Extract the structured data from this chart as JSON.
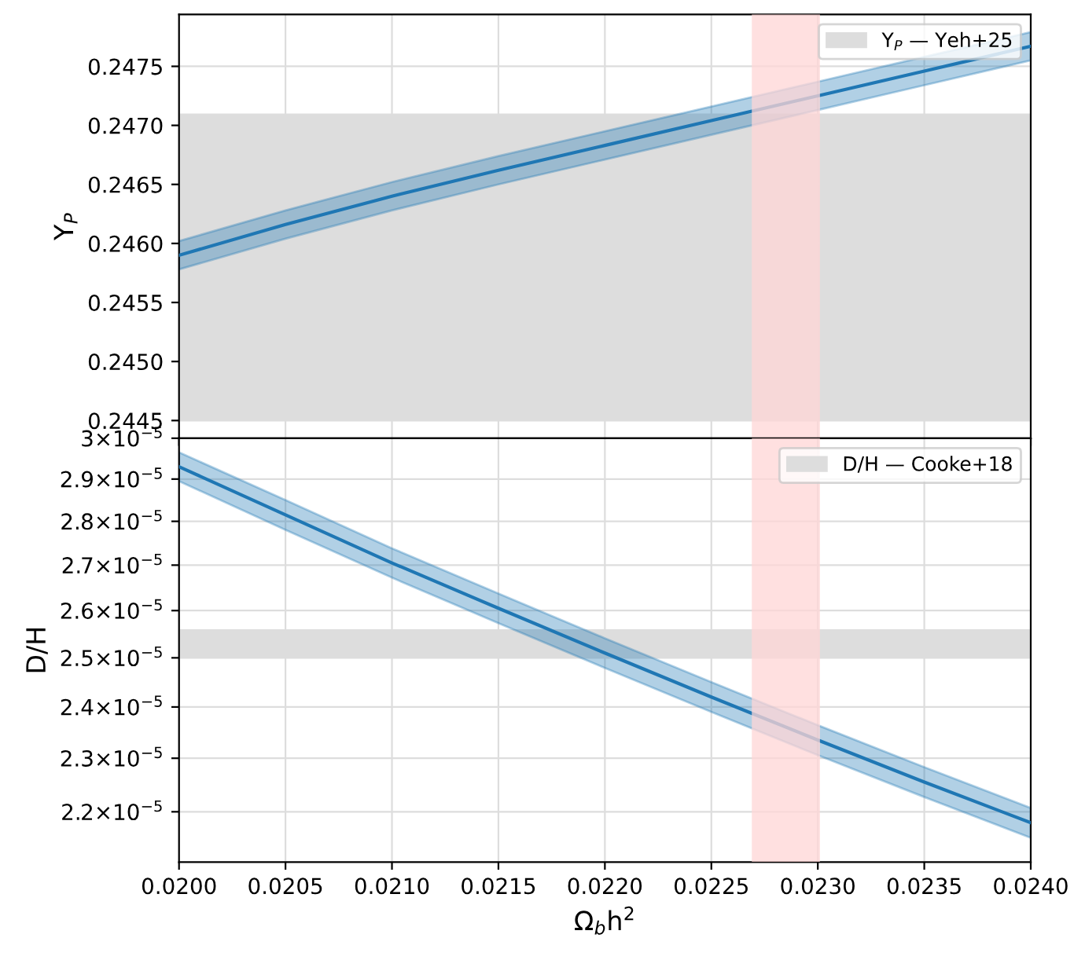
{
  "chart_data": [
    {
      "type": "line",
      "ylabel": "Y$_{P}$",
      "x": [
        0.02,
        0.0205,
        0.021,
        0.0215,
        0.022,
        0.0225,
        0.023,
        0.0235,
        0.024
      ],
      "xlim": [
        0.02,
        0.024
      ],
      "xticks": [
        0.02,
        0.0205,
        0.021,
        0.0215,
        0.022,
        0.0225,
        0.023,
        0.0235,
        0.024
      ],
      "ylim": [
        0.24435,
        0.24794
      ],
      "yticks": [
        {
          "value": 0.2445,
          "label": "0.2445"
        },
        {
          "value": 0.245,
          "label": "0.2450"
        },
        {
          "value": 0.2455,
          "label": "0.2455"
        },
        {
          "value": 0.246,
          "label": "0.2460"
        },
        {
          "value": 0.2465,
          "label": "0.2465"
        },
        {
          "value": 0.247,
          "label": "0.2470"
        },
        {
          "value": 0.2475,
          "label": "0.2475"
        }
      ],
      "tick_labels": "y",
      "grid": true,
      "legend": "top right",
      "series": [
        {
          "color": "#1f77b4",
          "values": [
            0.2459,
            0.24616,
            0.2464,
            0.24662,
            0.24683,
            0.24704,
            0.24725,
            0.24746,
            0.24767
          ],
          "lower": [
            0.24578,
            0.24604,
            0.24628,
            0.2465,
            0.24671,
            0.24692,
            0.24713,
            0.24734,
            0.24755
          ],
          "upper": [
            0.24602,
            0.24628,
            0.24652,
            0.24674,
            0.24695,
            0.24716,
            0.24737,
            0.24758,
            0.24779
          ]
        }
      ],
      "bands": [
        {
          "axis": "y",
          "from": 0.2445,
          "to": 0.2471,
          "label": "Y$_{P}$ — Yeh+25",
          "color": "#dddddd"
        },
        {
          "axis": "x",
          "from": 0.02269,
          "to": 0.02301,
          "color": "#ffd6d6"
        }
      ]
    },
    {
      "type": "line",
      "xlabel": "Ω$_{b}$h$^{2}$",
      "ylabel": "D/H",
      "log": "y",
      "x": [
        0.02,
        0.0205,
        0.021,
        0.0215,
        0.022,
        0.0225,
        0.023,
        0.0235,
        0.024
      ],
      "xlim": [
        0.02,
        0.024
      ],
      "xticks": [
        {
          "value": 0.02,
          "label": "0.0200"
        },
        {
          "value": 0.0205,
          "label": "0.0205"
        },
        {
          "value": 0.021,
          "label": "0.0210"
        },
        {
          "value": 0.0215,
          "label": "0.0215"
        },
        {
          "value": 0.022,
          "label": "0.0220"
        },
        {
          "value": 0.0225,
          "label": "0.0225"
        },
        {
          "value": 0.023,
          "label": "0.0230"
        },
        {
          "value": 0.0235,
          "label": "0.0235"
        },
        {
          "value": 0.024,
          "label": "0.0240"
        }
      ],
      "ylim": [
        2.11e-05,
        3e-05
      ],
      "yticks": [
        {
          "value": 2.2e-05,
          "label": "2.2×10$^{−5}$"
        },
        {
          "value": 2.3e-05,
          "label": "2.3×10$^{−5}$"
        },
        {
          "value": 2.4e-05,
          "label": "2.4×10$^{−5}$"
        },
        {
          "value": 2.5e-05,
          "label": "2.5×10$^{−5}$"
        },
        {
          "value": 2.6e-05,
          "label": "2.6×10$^{−5}$"
        },
        {
          "value": 2.7e-05,
          "label": "2.7×10$^{−5}$"
        },
        {
          "value": 2.8e-05,
          "label": "2.8×10$^{−5}$"
        },
        {
          "value": 2.9e-05,
          "label": "2.9×10$^{−5}$"
        },
        {
          "value": 3e-05,
          "label": "3×10$^{−5}$"
        }
      ],
      "grid": true,
      "legend": "top right",
      "series": [
        {
          "color": "#1f77b4",
          "values": [
            2.93e-05,
            2.815e-05,
            2.705e-05,
            2.605e-05,
            2.51e-05,
            2.42e-05,
            2.335e-05,
            2.255e-05,
            2.18e-05
          ],
          "lower": [
            2.895e-05,
            2.78e-05,
            2.672e-05,
            2.573e-05,
            2.479e-05,
            2.39e-05,
            2.306e-05,
            2.227e-05,
            2.153e-05
          ],
          "upper": [
            2.965e-05,
            2.85e-05,
            2.738e-05,
            2.637e-05,
            2.541e-05,
            2.45e-05,
            2.364e-05,
            2.283e-05,
            2.207e-05
          ]
        }
      ],
      "bands": [
        {
          "axis": "y",
          "from": 2.5e-05,
          "to": 2.56e-05,
          "label": "D/H — Cooke+18",
          "color": "#dddddd"
        },
        {
          "axis": "x",
          "from": 0.02269,
          "to": 0.02301,
          "color": "#ffd6d6"
        }
      ]
    }
  ]
}
